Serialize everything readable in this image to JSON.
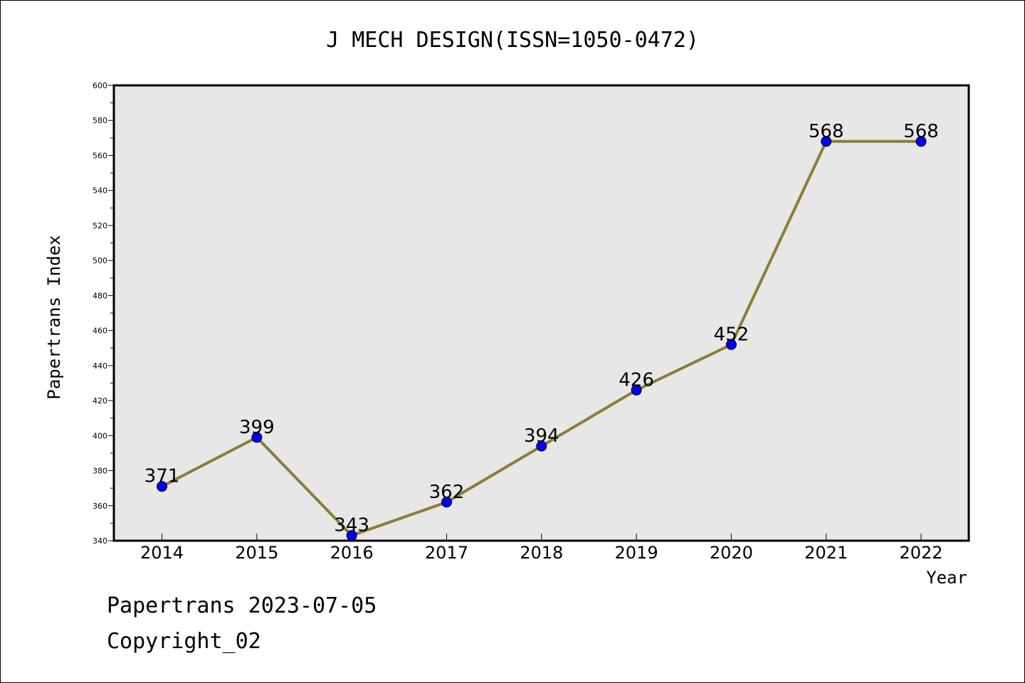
{
  "chart_data": {
    "type": "line",
    "title": "J MECH DESIGN(ISSN=1050-0472)",
    "xlabel": "Year",
    "ylabel": "Papertrans Index",
    "categories": [
      "2014",
      "2015",
      "2016",
      "2017",
      "2018",
      "2019",
      "2020",
      "2021",
      "2022"
    ],
    "series": [
      {
        "values": [
          371,
          399,
          343,
          362,
          394,
          426,
          452,
          568,
          568
        ]
      }
    ],
    "ylim": [
      340,
      600
    ],
    "yticks": [
      340,
      360,
      380,
      400,
      420,
      440,
      460,
      480,
      500,
      520,
      540,
      560,
      580,
      600
    ],
    "data_labels": true,
    "grid": false,
    "colors": {
      "line": "#8c7d38",
      "marker": "#0000ff",
      "plot_bg": "#e7e7e7"
    }
  },
  "footer": {
    "line1": "Papertrans 2023-07-05",
    "line2": "Copyright_02"
  }
}
